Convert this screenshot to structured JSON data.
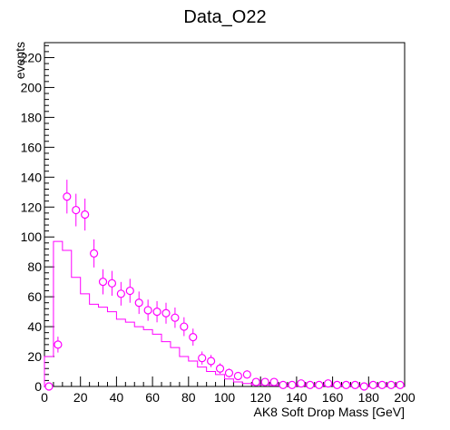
{
  "chart_data": {
    "type": "scatter",
    "title": "Data_O22",
    "xlabel": "AK8 Soft Drop Mass [GeV]",
    "ylabel": "events",
    "xlim": [
      0,
      200
    ],
    "ylim": [
      0,
      230
    ],
    "grid": false,
    "x_ticks": [
      0,
      20,
      40,
      60,
      80,
      100,
      120,
      140,
      160,
      180,
      200
    ],
    "y_ticks": [
      0,
      20,
      40,
      60,
      80,
      100,
      120,
      140,
      160,
      180,
      200,
      220
    ],
    "bin_edges": [
      0,
      5,
      10,
      15,
      20,
      25,
      30,
      35,
      40,
      45,
      50,
      55,
      60,
      65,
      70,
      75,
      80,
      85,
      90,
      95,
      100,
      105,
      110,
      115,
      120,
      125,
      130,
      135,
      140,
      145,
      150,
      155,
      160,
      165,
      170,
      175,
      180,
      185,
      190,
      195,
      200
    ],
    "series": [
      {
        "style": "markers",
        "color": "#ff00ff",
        "x": [
          2.5,
          7.5,
          12.5,
          17.5,
          22.5,
          27.5,
          32.5,
          37.5,
          42.5,
          47.5,
          52.5,
          57.5,
          62.5,
          67.5,
          72.5,
          77.5,
          82.5,
          87.5,
          92.5,
          97.5,
          102.5,
          107.5,
          112.5,
          117.5,
          122.5,
          127.5,
          132.5,
          137.5,
          142.5,
          147.5,
          152.5,
          157.5,
          162.5,
          167.5,
          172.5,
          177.5,
          182.5,
          187.5,
          192.5,
          197.5
        ],
        "values": [
          0,
          28,
          127,
          118,
          115,
          89,
          70,
          69,
          62,
          64,
          56,
          51,
          50,
          49,
          46,
          40,
          33,
          19,
          17,
          12,
          9,
          7,
          8,
          3,
          3,
          3,
          1,
          1,
          2,
          1,
          1,
          2,
          1,
          1,
          1,
          0,
          1,
          1,
          1,
          1
        ],
        "errors": [
          0,
          5.3,
          11.3,
          10.9,
          10.7,
          9.4,
          8.4,
          8.3,
          7.9,
          8.0,
          7.5,
          7.1,
          7.1,
          7.0,
          6.8,
          6.3,
          5.7,
          4.4,
          4.1,
          3.5,
          3.0,
          2.6,
          2.8,
          1.7,
          1.7,
          1.7,
          1.0,
          1.0,
          1.4,
          1.0,
          1.0,
          1.4,
          1.0,
          1.0,
          1.0,
          0,
          1.0,
          1.0,
          1.0,
          1.0
        ]
      },
      {
        "style": "step",
        "color": "#ff00ff",
        "values": [
          20,
          97,
          91,
          73,
          62,
          55,
          53,
          50,
          45,
          43,
          40,
          38,
          35,
          30,
          26,
          20,
          17,
          13,
          10,
          8,
          5,
          3,
          2,
          1,
          1,
          0.5,
          0.5,
          0.5,
          0.5,
          0.5,
          0.5,
          0.5,
          0.5,
          0.5,
          0.5,
          0.5,
          0.5,
          0.5,
          0.5,
          0.5
        ]
      }
    ]
  }
}
